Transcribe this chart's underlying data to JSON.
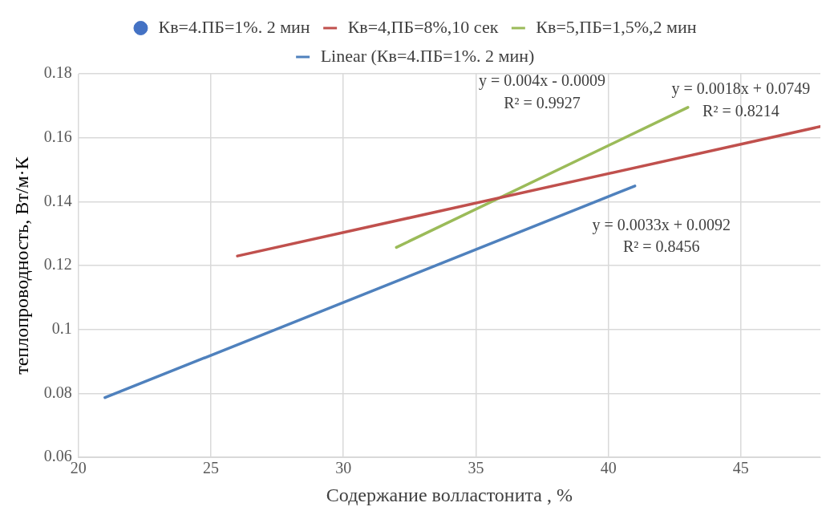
{
  "chart_data": {
    "type": "line",
    "xlabel": "Содержание волластонита , %",
    "ylabel": "теплопроводность, Вт/м·К",
    "xlim": [
      20,
      48
    ],
    "xticks": [
      20,
      25,
      30,
      35,
      40,
      45
    ],
    "ylim": [
      0.06,
      0.18
    ],
    "yticks": [
      0.06,
      0.08,
      0.1,
      0.12,
      0.14,
      0.16,
      0.18
    ],
    "grid": true,
    "legend": "top",
    "marker": "none",
    "line_style": "solid",
    "series": [
      {
        "name": "Кв=4.ПБ=1%. 2 мин",
        "type": "scatter",
        "marker": "circle",
        "color": "#4472c4"
      },
      {
        "name": "Кв=4,ПБ=8%,10 сек",
        "color": "#c0504d",
        "x": [
          26,
          48
        ],
        "values": [
          0.123,
          0.1635
        ]
      },
      {
        "name": "Кв=5,ПБ=1,5%,2 мин",
        "color": "#9bbb59",
        "x": [
          32,
          43
        ],
        "values": [
          0.1257,
          0.1695
        ]
      },
      {
        "name": "Linear (Кв=4.ПБ=1%. 2 мин)",
        "color": "#4f81bd",
        "x": [
          21,
          41
        ],
        "values": [
          0.0787,
          0.1449
        ]
      }
    ],
    "annotations": [
      "y = 0.004x - 0.0009",
      "R² = 0.9927",
      "y = 0.0018x + 0.0749",
      "R² = 0.8214",
      "y = 0.0033x + 0.0092",
      "R² = 0.8456"
    ]
  }
}
